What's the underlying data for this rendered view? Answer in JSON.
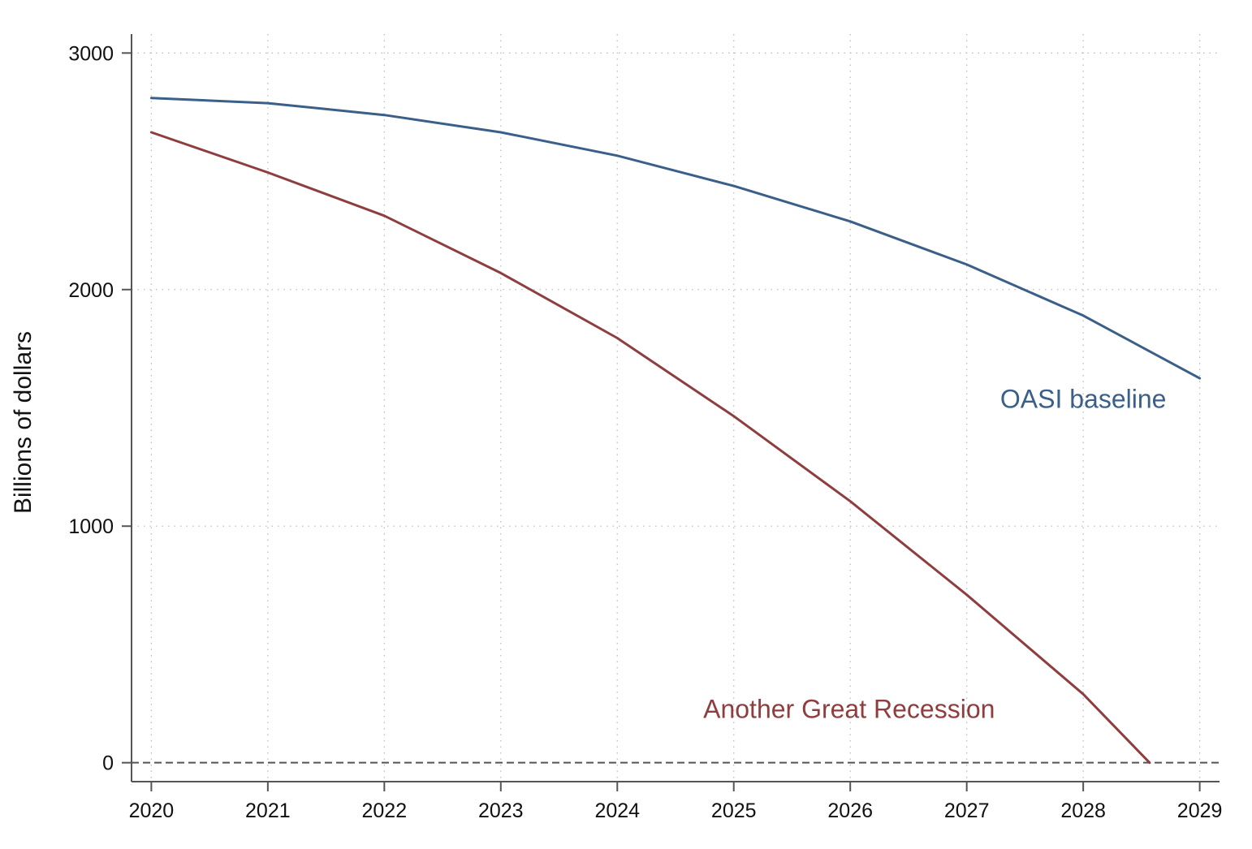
{
  "chart_data": {
    "type": "line",
    "title": "",
    "xlabel": "",
    "ylabel": "Billions of dollars",
    "x": [
      2020,
      2021,
      2022,
      2023,
      2024,
      2025,
      2026,
      2027,
      2028,
      2029
    ],
    "x_ticks": [
      "2020",
      "2021",
      "2022",
      "2023",
      "2024",
      "2025",
      "2026",
      "2027",
      "2028",
      "2029"
    ],
    "y_ticks": [
      "0",
      "1000",
      "2000",
      "3000"
    ],
    "xlim": [
      2019.83,
      2029.17
    ],
    "ylim": [
      -80,
      3080
    ],
    "grid": true,
    "reference_line": {
      "y": 0,
      "style": "dashed"
    },
    "legend": "direct labels next to lines",
    "series": [
      {
        "name": "OASI baseline",
        "color": "#3a5f88",
        "x": [
          2020,
          2021,
          2022,
          2023,
          2024,
          2025,
          2026,
          2027,
          2028,
          2029
        ],
        "values": [
          2810,
          2788,
          2738,
          2665,
          2566,
          2438,
          2288,
          2106,
          1890,
          1625
        ]
      },
      {
        "name": "Another Great Recession",
        "color": "#8e3e3e",
        "x": [
          2020,
          2021,
          2022,
          2023,
          2024,
          2025,
          2026,
          2027,
          2028,
          2028.57
        ],
        "values": [
          2665,
          2495,
          2312,
          2070,
          1795,
          1465,
          1105,
          710,
          290,
          0
        ]
      }
    ]
  }
}
